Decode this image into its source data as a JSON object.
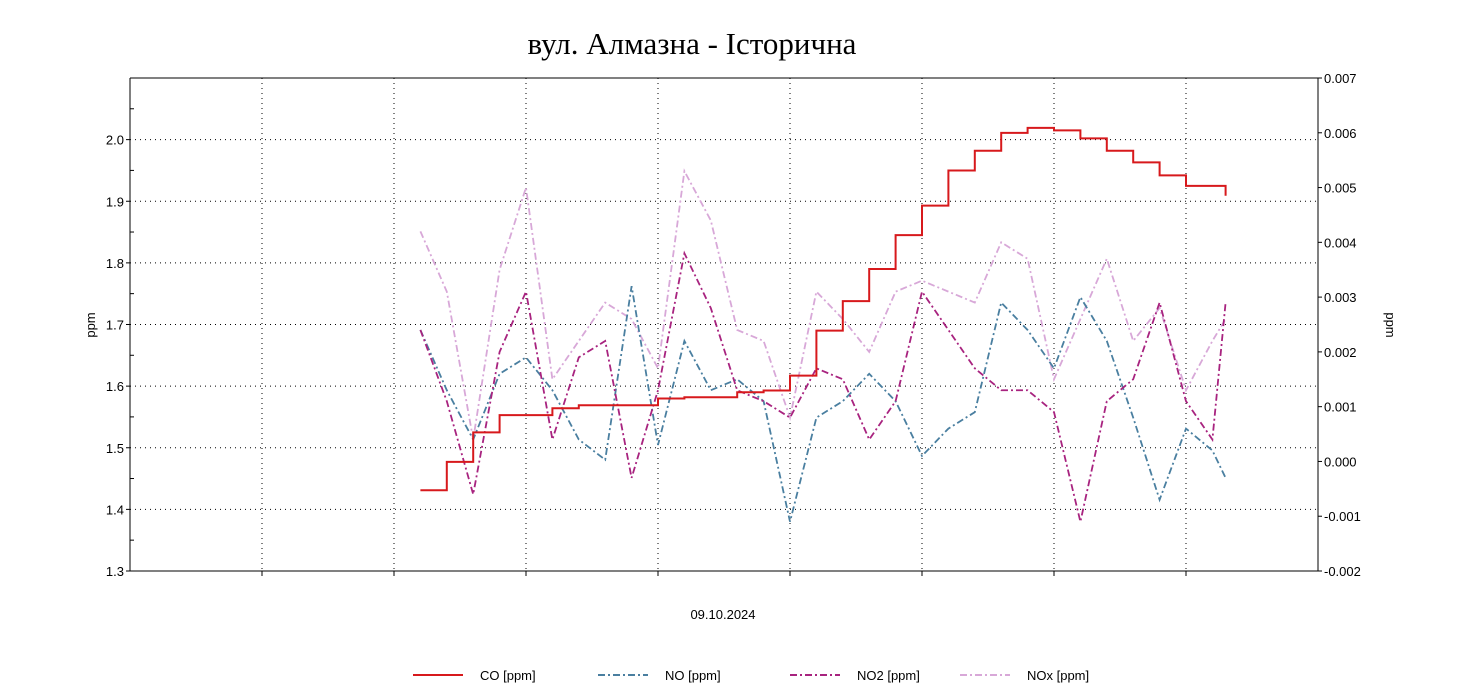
{
  "chart_data": {
    "type": "line",
    "title": "вул. Алмазна - Історична",
    "xlabel": "09.10.2024",
    "ylabel_left": "ppm",
    "ylabel_right": "ppm",
    "xlim": [
      0,
      9
    ],
    "ylim_left": [
      1.3,
      2.1
    ],
    "ylim_right": [
      -0.002,
      0.007
    ],
    "left_ticks": [
      "1.3",
      "1.4",
      "1.5",
      "1.6",
      "1.7",
      "1.8",
      "1.9",
      "2.0"
    ],
    "right_ticks": [
      "-0.002",
      "-0.001",
      "0.000",
      "0.001",
      "0.002",
      "0.003",
      "0.004",
      "0.005",
      "0.006",
      "0.007"
    ],
    "grid": true,
    "legend_position": "bottom",
    "x": [
      2.2,
      2.4,
      2.6,
      2.8,
      3.0,
      3.2,
      3.4,
      3.6,
      3.8,
      4.0,
      4.2,
      4.4,
      4.6,
      4.8,
      5.0,
      5.2,
      5.4,
      5.6,
      5.8,
      6.0,
      6.2,
      6.4,
      6.6,
      6.8,
      7.0,
      7.2,
      7.4,
      7.6,
      7.8,
      8.0,
      8.2,
      8.3
    ],
    "series": [
      {
        "name": "CO [ppm]",
        "axis": "left",
        "color": "#d7191c",
        "dash": "solid",
        "values": [
          1.431,
          1.477,
          1.525,
          1.553,
          1.553,
          1.564,
          1.569,
          1.569,
          1.569,
          1.58,
          1.582,
          1.582,
          1.59,
          1.593,
          1.617,
          1.69,
          1.738,
          1.79,
          1.845,
          1.893,
          1.95,
          1.982,
          2.011,
          2.019,
          2.015,
          2.002,
          1.982,
          1.963,
          1.942,
          1.925,
          1.925,
          1.909
        ]
      },
      {
        "name": "NO [ppm]",
        "axis": "right",
        "color": "#4a7fa0",
        "dash": "dashdot",
        "values": [
          0.0024,
          0.0013,
          0.0004,
          0.0016,
          0.0019,
          0.0013,
          0.0004,
          3e-05,
          0.0032,
          0.0003,
          0.0022,
          0.0013,
          0.0015,
          0.0011,
          -0.0011,
          0.0008,
          0.0011,
          0.0016,
          0.0011,
          0.0001,
          0.0006,
          0.0009,
          0.0029,
          0.0024,
          0.0017,
          0.003,
          0.0022,
          0.0008,
          -0.0007,
          0.0006,
          0.0002,
          -0.0003
        ]
      },
      {
        "name": "NO2 [ppm]",
        "axis": "right",
        "color": "#a8237f",
        "dash": "dashdot",
        "values": [
          0.0024,
          0.0011,
          -0.0006,
          0.002,
          0.0031,
          0.0004,
          0.0019,
          0.0022,
          -0.0003,
          0.0013,
          0.0038,
          0.0028,
          0.0013,
          0.0011,
          0.0008,
          0.0017,
          0.0015,
          0.0004,
          0.0011,
          0.0031,
          0.0024,
          0.0017,
          0.0013,
          0.0013,
          0.0009,
          -0.0011,
          0.0011,
          0.0015,
          0.0029,
          0.0011,
          0.0004,
          0.0029
        ]
      },
      {
        "name": "NOx [ppm]",
        "axis": "right",
        "color": "#d8a8d8",
        "dash": "dashdot",
        "values": [
          0.0042,
          0.0031,
          0.0004,
          0.0035,
          0.005,
          0.0015,
          0.0022,
          0.0029,
          0.0026,
          0.0017,
          0.0053,
          0.0044,
          0.0024,
          0.0022,
          0.0008,
          0.0031,
          0.0026,
          0.002,
          0.0031,
          0.0033,
          0.0031,
          0.0029,
          0.004,
          0.0037,
          0.0015,
          0.0026,
          0.0037,
          0.0022,
          0.0028,
          0.0013,
          0.0022,
          0.0026
        ]
      }
    ]
  }
}
